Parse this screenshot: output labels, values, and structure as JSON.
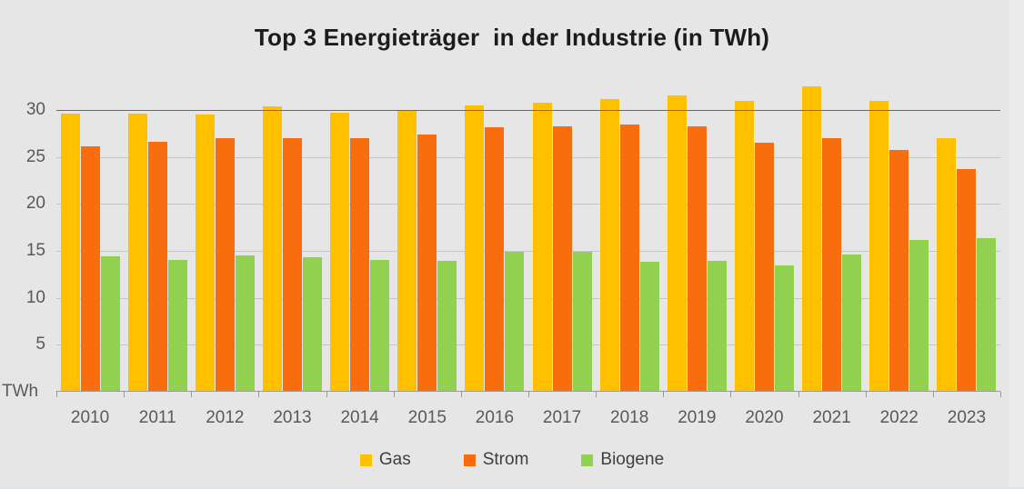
{
  "page": {
    "background_color": "#E7E6E6"
  },
  "chart_data": {
    "type": "bar",
    "title": "Top 3 Energieträger  in der Industrie (in TWh)",
    "ylabel": "TWh",
    "categories": [
      "2010",
      "2011",
      "2012",
      "2013",
      "2014",
      "2015",
      "2016",
      "2017",
      "2018",
      "2019",
      "2020",
      "2021",
      "2022",
      "2023"
    ],
    "series": [
      {
        "name": "Gas",
        "color": "#FFC000",
        "values": [
          29.5,
          29.5,
          29.4,
          30.3,
          29.6,
          29.8,
          30.4,
          30.7,
          31.1,
          31.5,
          30.9,
          32.4,
          30.9,
          26.9
        ]
      },
      {
        "name": "Strom",
        "color": "#F86E0E",
        "values": [
          26.0,
          26.5,
          26.9,
          26.9,
          26.9,
          27.3,
          28.1,
          28.2,
          28.4,
          28.2,
          26.4,
          26.9,
          25.6,
          23.6
        ]
      },
      {
        "name": "Biogene",
        "color": "#92D050",
        "values": [
          14.3,
          13.9,
          14.4,
          14.2,
          13.9,
          13.8,
          14.8,
          14.8,
          13.7,
          13.8,
          13.4,
          14.5,
          16.1,
          16.3
        ]
      }
    ],
    "ylim": [
      0,
      33
    ],
    "yticks": [
      5,
      10,
      15,
      20,
      25,
      30
    ],
    "grid": true,
    "emphasized_gridline": 30,
    "legend_position": "bottom",
    "axis_color": "#9a9a9a",
    "gridline_color": "#c6c5c5",
    "emphasized_gridline_color": "#696969",
    "label_color": "#595959"
  }
}
